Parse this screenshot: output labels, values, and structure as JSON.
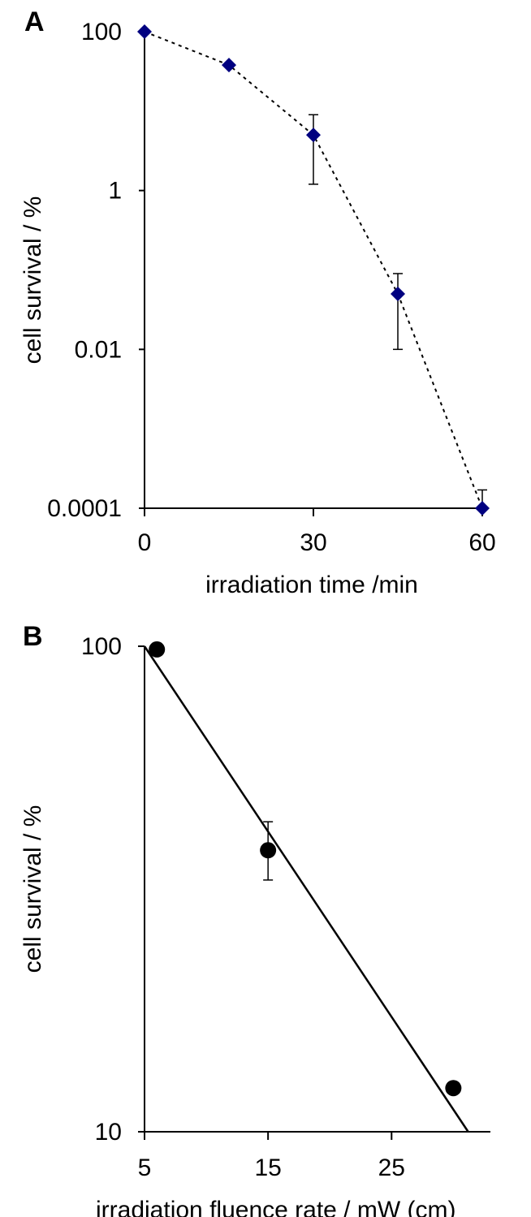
{
  "chart_data": [
    {
      "panel": "A",
      "type": "scatter",
      "connector": "dotted-line",
      "xlabel": "irradiation time /min",
      "ylabel": "cell survival / %",
      "x_scale": "linear",
      "y_scale": "log",
      "xlim": [
        0,
        60
      ],
      "ylim": [
        0.0001,
        100
      ],
      "x_ticks": [
        0,
        30,
        60
      ],
      "x_tick_labels": [
        "0",
        "30",
        "60"
      ],
      "y_ticks": [
        100,
        1,
        0.01,
        0.0001
      ],
      "y_tick_labels": [
        "100",
        "1",
        "0.01",
        "0.0001"
      ],
      "grid": false,
      "marker": "diamond",
      "marker_color": "#000080",
      "points": [
        {
          "x": 0,
          "y": 100
        },
        {
          "x": 15,
          "y": 38
        },
        {
          "x": 30,
          "y": 5,
          "err_low": 1.2,
          "err_high": 9
        },
        {
          "x": 45,
          "y": 0.05,
          "err_low": 0.01,
          "err_high": 0.09
        },
        {
          "x": 60,
          "y": 0.0001,
          "err_low": 0.0001,
          "err_high": 0.00017
        }
      ]
    },
    {
      "panel": "B",
      "type": "scatter",
      "connector": "solid-fit-line",
      "xlabel": "irradiation fluence rate / mW (cm)",
      "ylabel": "cell survival / %",
      "x_scale": "linear",
      "y_scale": "log",
      "xlim": [
        5,
        33
      ],
      "ylim": [
        10,
        100
      ],
      "x_ticks": [
        5,
        15,
        25
      ],
      "x_tick_labels": [
        "5",
        "15",
        "25"
      ],
      "y_ticks": [
        100,
        10
      ],
      "y_tick_labels": [
        "100",
        "10"
      ],
      "grid": false,
      "marker": "circle",
      "marker_color": "#000000",
      "points": [
        {
          "x": 6,
          "y": 98.5
        },
        {
          "x": 15,
          "y": 38,
          "err_low": 33,
          "err_high": 43.5
        },
        {
          "x": 30,
          "y": 12.3
        }
      ],
      "fit_line": [
        {
          "x": 5,
          "y": 100
        },
        {
          "x": 31.2,
          "y": 10
        }
      ]
    }
  ]
}
